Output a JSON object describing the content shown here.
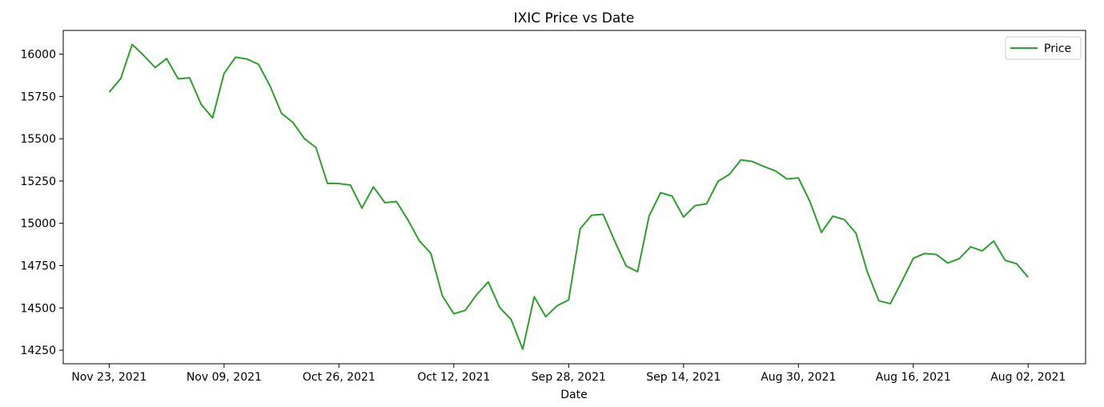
{
  "chart_data": {
    "type": "line",
    "title": "IXIC Price vs Date",
    "xlabel": "Date",
    "ylabel": "",
    "ylim": [
      14170,
      16140
    ],
    "xlim": [
      -4,
      85
    ],
    "x_tick_labels": [
      "Nov 23, 2021",
      "Nov 09, 2021",
      "Oct 26, 2021",
      "Oct 12, 2021",
      "Sep 28, 2021",
      "Sep 14, 2021",
      "Aug 30, 2021",
      "Aug 16, 2021",
      "Aug 02, 2021"
    ],
    "y_ticks": [
      14250,
      14500,
      14750,
      15000,
      15250,
      15500,
      15750,
      16000
    ],
    "grid": false,
    "legend_position": "top-right",
    "color": "#2ca02c",
    "series": [
      {
        "name": "Price",
        "values": [
          15775,
          15855,
          16057,
          15993,
          15921,
          15974,
          15854,
          15860,
          15704,
          15623,
          15886,
          15982,
          15971,
          15940,
          15812,
          15650,
          15596,
          15500,
          15448,
          15236,
          15235,
          15226,
          15090,
          15215,
          15122,
          15129,
          15021,
          14896,
          14823,
          14572,
          14465,
          14486,
          14579,
          14654,
          14502,
          14430,
          14256,
          14566,
          14448,
          14513,
          14547,
          14968,
          15048,
          15053,
          14896,
          14748,
          14714,
          15043,
          15181,
          15161,
          15037,
          15105,
          15115,
          15248,
          15290,
          15375,
          15365,
          15336,
          15310,
          15262,
          15268,
          15129,
          14946,
          15042,
          15022,
          14943,
          14713,
          14542,
          14525,
          14656,
          14793,
          14822,
          14816,
          14765,
          14791,
          14861,
          14837,
          14895,
          14781,
          14761,
          14681
        ]
      }
    ]
  }
}
